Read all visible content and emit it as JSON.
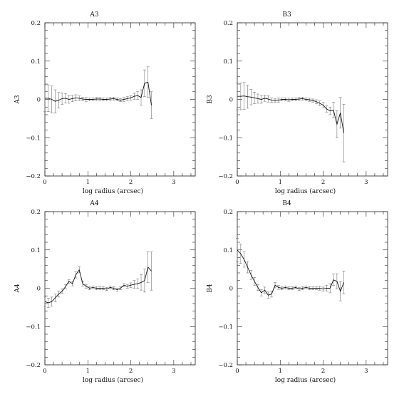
{
  "chart_data": [
    {
      "type": "line",
      "title": "A3",
      "xlabel": "log radius (arcsec)",
      "ylabel": "A3",
      "xlim": [
        0,
        3.5
      ],
      "ylim": [
        -0.2,
        0.2
      ],
      "xticks": [
        "0",
        "1",
        "2",
        "3"
      ],
      "yticks": [
        "0.2",
        "0.1",
        "0",
        "−0.1",
        "−0.2"
      ],
      "x": [
        0.0,
        0.08,
        0.16,
        0.24,
        0.32,
        0.4,
        0.48,
        0.56,
        0.64,
        0.72,
        0.8,
        0.88,
        0.96,
        1.04,
        1.12,
        1.2,
        1.28,
        1.36,
        1.44,
        1.52,
        1.6,
        1.68,
        1.76,
        1.84,
        1.92,
        2.0,
        2.08,
        2.16,
        2.24,
        2.32,
        2.4,
        2.48
      ],
      "y": [
        0.003,
        0.003,
        0.0,
        -0.005,
        -0.002,
        0.002,
        0.003,
        0.0,
        0.002,
        0.004,
        0.003,
        0.001,
        0.0,
        0.0,
        0.0,
        0.001,
        0.001,
        0.0,
        0.0,
        0.001,
        0.002,
        0.0,
        -0.002,
        0.0,
        0.002,
        0.004,
        0.008,
        0.01,
        0.005,
        0.042,
        0.045,
        -0.015
      ],
      "err": [
        0.035,
        0.035,
        0.035,
        0.03,
        0.02,
        0.015,
        0.012,
        0.01,
        0.008,
        0.008,
        0.006,
        0.005,
        0.005,
        0.004,
        0.004,
        0.004,
        0.004,
        0.004,
        0.004,
        0.004,
        0.004,
        0.004,
        0.004,
        0.005,
        0.005,
        0.006,
        0.008,
        0.01,
        0.02,
        0.035,
        0.04,
        0.035
      ]
    },
    {
      "type": "line",
      "title": "B3",
      "xlabel": "log radius (arcsec)",
      "ylabel": "B3",
      "xlim": [
        0,
        3.5
      ],
      "ylim": [
        -0.2,
        0.2
      ],
      "xticks": [
        "0",
        "1",
        "2",
        "3"
      ],
      "yticks": [
        "0.2",
        "0.1",
        "0",
        "−0.1",
        "−0.2"
      ],
      "x": [
        0.0,
        0.08,
        0.16,
        0.24,
        0.32,
        0.4,
        0.48,
        0.56,
        0.64,
        0.72,
        0.8,
        0.88,
        0.96,
        1.04,
        1.12,
        1.2,
        1.28,
        1.36,
        1.44,
        1.52,
        1.6,
        1.68,
        1.76,
        1.84,
        1.92,
        2.0,
        2.08,
        2.16,
        2.24,
        2.32,
        2.4,
        2.48
      ],
      "y": [
        0.008,
        0.008,
        0.009,
        0.007,
        0.006,
        0.004,
        0.002,
        0.0,
        0.003,
        0.001,
        -0.002,
        -0.003,
        -0.002,
        0.0,
        0.0,
        -0.001,
        0.0,
        0.0,
        0.001,
        0.002,
        0.0,
        -0.001,
        -0.003,
        -0.006,
        -0.01,
        -0.015,
        -0.025,
        -0.03,
        -0.028,
        -0.065,
        -0.035,
        -0.088
      ],
      "err": [
        0.035,
        0.035,
        0.035,
        0.03,
        0.02,
        0.015,
        0.012,
        0.01,
        0.008,
        0.008,
        0.006,
        0.005,
        0.005,
        0.004,
        0.004,
        0.004,
        0.004,
        0.004,
        0.004,
        0.004,
        0.004,
        0.004,
        0.004,
        0.005,
        0.006,
        0.007,
        0.008,
        0.01,
        0.02,
        0.035,
        0.04,
        0.075
      ]
    },
    {
      "type": "line",
      "title": "A4",
      "xlabel": "log radius (arcsec)",
      "ylabel": "A4",
      "xlim": [
        0,
        3.5
      ],
      "ylim": [
        -0.2,
        0.2
      ],
      "xticks": [
        "0",
        "1",
        "2",
        "3"
      ],
      "yticks": [
        "0.2",
        "0.1",
        "0",
        "−0.1",
        "−0.2"
      ],
      "x": [
        0.0,
        0.08,
        0.16,
        0.24,
        0.32,
        0.4,
        0.48,
        0.56,
        0.64,
        0.72,
        0.8,
        0.88,
        0.96,
        1.04,
        1.12,
        1.2,
        1.28,
        1.36,
        1.44,
        1.52,
        1.6,
        1.68,
        1.76,
        1.84,
        1.92,
        2.0,
        2.08,
        2.16,
        2.24,
        2.32,
        2.4,
        2.48
      ],
      "y": [
        -0.035,
        -0.038,
        -0.035,
        -0.025,
        -0.015,
        -0.008,
        0.004,
        0.018,
        0.012,
        0.035,
        0.048,
        0.012,
        0.005,
        0.0,
        0.002,
        0.0,
        0.0,
        0.0,
        -0.002,
        0.002,
        0.0,
        -0.004,
        0.0,
        0.008,
        0.005,
        0.008,
        0.01,
        0.012,
        0.015,
        0.02,
        0.055,
        0.045
      ],
      "err": [
        0.012,
        0.012,
        0.012,
        0.01,
        0.008,
        0.006,
        0.005,
        0.005,
        0.006,
        0.008,
        0.008,
        0.006,
        0.005,
        0.004,
        0.004,
        0.004,
        0.004,
        0.004,
        0.004,
        0.004,
        0.004,
        0.004,
        0.004,
        0.004,
        0.005,
        0.006,
        0.01,
        0.012,
        0.02,
        0.03,
        0.04,
        0.05
      ]
    },
    {
      "type": "line",
      "title": "B4",
      "xlabel": "log radius (arcsec)",
      "ylabel": "B4",
      "xlim": [
        0,
        3.5
      ],
      "ylim": [
        -0.2,
        0.2
      ],
      "xticks": [
        "0",
        "1",
        "2",
        "3"
      ],
      "yticks": [
        "0.2",
        "0.1",
        "0",
        "−0.1",
        "−0.2"
      ],
      "x": [
        0.0,
        0.08,
        0.16,
        0.24,
        0.32,
        0.4,
        0.48,
        0.56,
        0.64,
        0.72,
        0.8,
        0.88,
        0.96,
        1.04,
        1.12,
        1.2,
        1.28,
        1.36,
        1.44,
        1.52,
        1.6,
        1.68,
        1.76,
        1.84,
        1.92,
        2.0,
        2.08,
        2.16,
        2.24,
        2.32,
        2.4,
        2.48
      ],
      "y": [
        0.1,
        0.09,
        0.075,
        0.055,
        0.035,
        0.018,
        0.002,
        -0.012,
        -0.005,
        -0.018,
        -0.015,
        0.008,
        0.002,
        0.0,
        0.002,
        0.0,
        0.0,
        0.002,
        -0.002,
        0.0,
        0.002,
        0.0,
        0.0,
        0.0,
        0.0,
        -0.002,
        0.0,
        0.0,
        0.022,
        0.018,
        -0.008,
        0.015
      ],
      "err": [
        0.03,
        0.025,
        0.02,
        0.015,
        0.012,
        0.01,
        0.008,
        0.008,
        0.008,
        0.008,
        0.008,
        0.007,
        0.005,
        0.004,
        0.004,
        0.004,
        0.004,
        0.004,
        0.004,
        0.004,
        0.004,
        0.004,
        0.004,
        0.004,
        0.005,
        0.005,
        0.008,
        0.012,
        0.015,
        0.02,
        0.025,
        0.03
      ]
    }
  ]
}
